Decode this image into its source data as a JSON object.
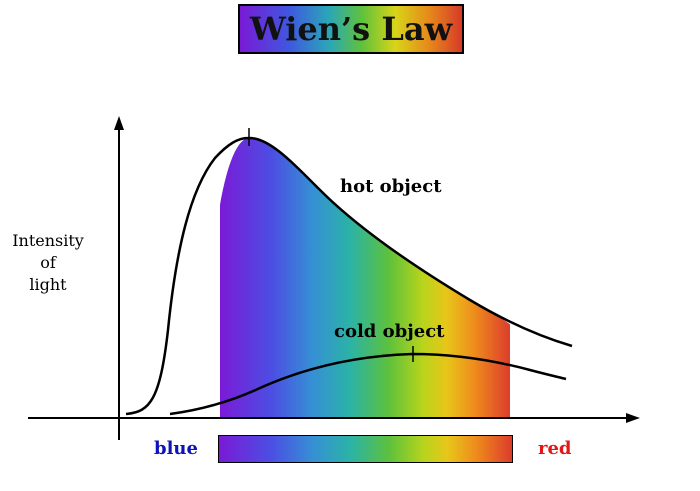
{
  "title": "Wien’s Law",
  "y_axis_label": [
    "Intensity",
    "of",
    "light"
  ],
  "curves": {
    "hot_label": "hot object",
    "cold_label": "cold object"
  },
  "spectrum": {
    "left_label": "blue",
    "right_label": "red"
  },
  "colors": {
    "blue_label": "#0c13b8",
    "red_label": "#e01818"
  }
}
